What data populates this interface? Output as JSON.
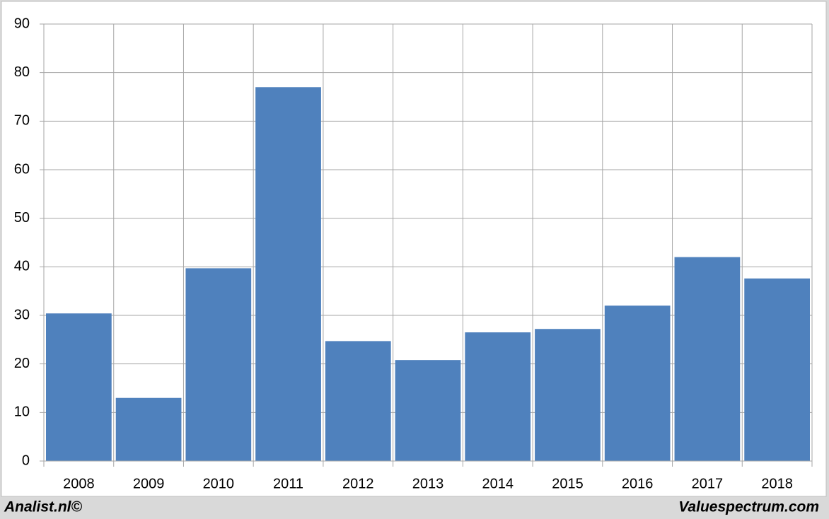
{
  "chart_data": {
    "type": "bar",
    "categories": [
      "2008",
      "2009",
      "2010",
      "2011",
      "2012",
      "2013",
      "2014",
      "2015",
      "2016",
      "2017",
      "2018"
    ],
    "values": [
      30.4,
      13,
      39.7,
      77,
      24.7,
      20.8,
      26.5,
      27.2,
      32,
      42,
      37.6
    ],
    "color": "#4f81bd",
    "ylim": [
      0,
      90
    ],
    "yticks": [
      0,
      10,
      20,
      30,
      40,
      50,
      60,
      70,
      80,
      90
    ],
    "grid": true,
    "footer_left": "Analist.nl©",
    "footer_right": "Valuespectrum.com"
  }
}
